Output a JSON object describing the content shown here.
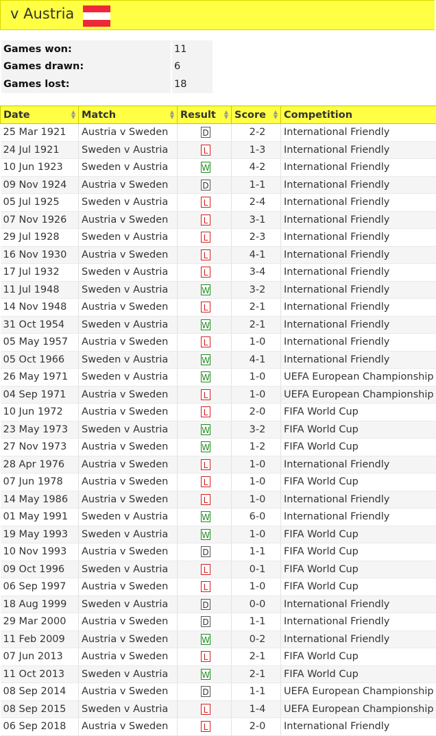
{
  "header": {
    "title": "v Austria",
    "flag_colors": [
      "#ed2939",
      "#ffffff",
      "#ed2939"
    ]
  },
  "summary": [
    {
      "label": "Games won:",
      "value": "11"
    },
    {
      "label": "Games drawn:",
      "value": "6"
    },
    {
      "label": "Games lost:",
      "value": "18"
    }
  ],
  "table": {
    "columns": [
      "Date",
      "Match",
      "Result",
      "Score",
      "Competition"
    ],
    "rows": [
      {
        "date": "25 Mar 1921",
        "match": "Austria v Sweden",
        "result": "D",
        "score": "2-2",
        "competition": "International Friendly"
      },
      {
        "date": "24 Jul 1921",
        "match": "Sweden v Austria",
        "result": "L",
        "score": "1-3",
        "competition": "International Friendly"
      },
      {
        "date": "10 Jun 1923",
        "match": "Sweden v Austria",
        "result": "W",
        "score": "4-2",
        "competition": "International Friendly"
      },
      {
        "date": "09 Nov 1924",
        "match": "Austria v Sweden",
        "result": "D",
        "score": "1-1",
        "competition": "International Friendly"
      },
      {
        "date": "05 Jul 1925",
        "match": "Sweden v Austria",
        "result": "L",
        "score": "2-4",
        "competition": "International Friendly"
      },
      {
        "date": "07 Nov 1926",
        "match": "Austria v Sweden",
        "result": "L",
        "score": "3-1",
        "competition": "International Friendly"
      },
      {
        "date": "29 Jul 1928",
        "match": "Sweden v Austria",
        "result": "L",
        "score": "2-3",
        "competition": "International Friendly"
      },
      {
        "date": "16 Nov 1930",
        "match": "Austria v Sweden",
        "result": "L",
        "score": "4-1",
        "competition": "International Friendly"
      },
      {
        "date": "17 Jul 1932",
        "match": "Sweden v Austria",
        "result": "L",
        "score": "3-4",
        "competition": "International Friendly"
      },
      {
        "date": "11 Jul 1948",
        "match": "Sweden v Austria",
        "result": "W",
        "score": "3-2",
        "competition": "International Friendly"
      },
      {
        "date": "14 Nov 1948",
        "match": "Austria v Sweden",
        "result": "L",
        "score": "2-1",
        "competition": "International Friendly"
      },
      {
        "date": "31 Oct 1954",
        "match": "Sweden v Austria",
        "result": "W",
        "score": "2-1",
        "competition": "International Friendly"
      },
      {
        "date": "05 May 1957",
        "match": "Austria v Sweden",
        "result": "L",
        "score": "1-0",
        "competition": "International Friendly"
      },
      {
        "date": "05 Oct 1966",
        "match": "Sweden v Austria",
        "result": "W",
        "score": "4-1",
        "competition": "International Friendly"
      },
      {
        "date": "26 May 1971",
        "match": "Sweden v Austria",
        "result": "W",
        "score": "1-0",
        "competition": "UEFA European Championship"
      },
      {
        "date": "04 Sep 1971",
        "match": "Austria v Sweden",
        "result": "L",
        "score": "1-0",
        "competition": "UEFA European Championship"
      },
      {
        "date": "10 Jun 1972",
        "match": "Austria v Sweden",
        "result": "L",
        "score": "2-0",
        "competition": "FIFA World Cup"
      },
      {
        "date": "23 May 1973",
        "match": "Sweden v Austria",
        "result": "W",
        "score": "3-2",
        "competition": "FIFA World Cup"
      },
      {
        "date": "27 Nov 1973",
        "match": "Austria v Sweden",
        "result": "W",
        "score": "1-2",
        "competition": "FIFA World Cup"
      },
      {
        "date": "28 Apr 1976",
        "match": "Austria v Sweden",
        "result": "L",
        "score": "1-0",
        "competition": "International Friendly"
      },
      {
        "date": "07 Jun 1978",
        "match": "Austria v Sweden",
        "result": "L",
        "score": "1-0",
        "competition": "FIFA World Cup"
      },
      {
        "date": "14 May 1986",
        "match": "Austria v Sweden",
        "result": "L",
        "score": "1-0",
        "competition": "International Friendly"
      },
      {
        "date": "01 May 1991",
        "match": "Sweden v Austria",
        "result": "W",
        "score": "6-0",
        "competition": "International Friendly"
      },
      {
        "date": "19 May 1993",
        "match": "Sweden v Austria",
        "result": "W",
        "score": "1-0",
        "competition": "FIFA World Cup"
      },
      {
        "date": "10 Nov 1993",
        "match": "Austria v Sweden",
        "result": "D",
        "score": "1-1",
        "competition": "FIFA World Cup"
      },
      {
        "date": "09 Oct 1996",
        "match": "Sweden v Austria",
        "result": "L",
        "score": "0-1",
        "competition": "FIFA World Cup"
      },
      {
        "date": "06 Sep 1997",
        "match": "Austria v Sweden",
        "result": "L",
        "score": "1-0",
        "competition": "FIFA World Cup"
      },
      {
        "date": "18 Aug 1999",
        "match": "Sweden v Austria",
        "result": "D",
        "score": "0-0",
        "competition": "International Friendly"
      },
      {
        "date": "29 Mar 2000",
        "match": "Austria v Sweden",
        "result": "D",
        "score": "1-1",
        "competition": "International Friendly"
      },
      {
        "date": "11 Feb 2009",
        "match": "Austria v Sweden",
        "result": "W",
        "score": "0-2",
        "competition": "International Friendly"
      },
      {
        "date": "07 Jun 2013",
        "match": "Austria v Sweden",
        "result": "L",
        "score": "2-1",
        "competition": "FIFA World Cup"
      },
      {
        "date": "11 Oct 2013",
        "match": "Sweden v Austria",
        "result": "W",
        "score": "2-1",
        "competition": "FIFA World Cup"
      },
      {
        "date": "08 Sep 2014",
        "match": "Austria v Sweden",
        "result": "D",
        "score": "1-1",
        "competition": "UEFA European Championship"
      },
      {
        "date": "08 Sep 2015",
        "match": "Sweden v Austria",
        "result": "L",
        "score": "1-4",
        "competition": "UEFA European Championship"
      },
      {
        "date": "06 Sep 2018",
        "match": "Austria v Sweden",
        "result": "L",
        "score": "2-0",
        "competition": "International Friendly"
      }
    ]
  }
}
